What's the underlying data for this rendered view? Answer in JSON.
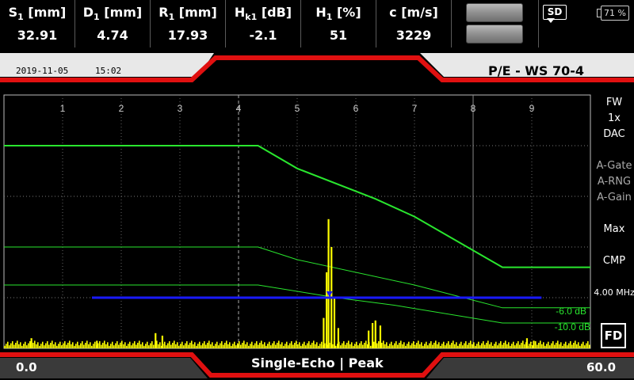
{
  "measurements": [
    {
      "label_main": "S",
      "label_sub": "1",
      "label_unit": " [mm]",
      "value": "32.91"
    },
    {
      "label_main": "D",
      "label_sub": "1",
      "label_unit": " [mm]",
      "value": "4.74"
    },
    {
      "label_main": "R",
      "label_sub": "1",
      "label_unit": " [mm]",
      "value": "17.93"
    },
    {
      "label_main": "H",
      "label_sub": "k1",
      "label_unit": " [dB]",
      "value": "-2.1"
    },
    {
      "label_main": "H",
      "label_sub": "1",
      "label_unit": " [%]",
      "value": "51"
    },
    {
      "label_main": "c [m/s]",
      "label_sub": "",
      "label_unit": "",
      "value": "3229"
    }
  ],
  "status": {
    "sd_label": "SD",
    "battery": "71 %"
  },
  "header": {
    "date": "2019-11-05",
    "time": "15:02",
    "probe": "P/E - WS 70-4"
  },
  "side_panel": {
    "fw": "FW",
    "zoom": "1x",
    "dac": "DAC",
    "a_gate": "A-Gate",
    "a_rng": "A-RNG",
    "a_gain": "A-Gain",
    "max": "Max",
    "cmp": "CMP",
    "freq": "4.00 MHz",
    "fd": "FD"
  },
  "footer": {
    "range_start": "0.0",
    "mode": "Single-Echo | Peak",
    "range_end": "60.0"
  },
  "colors": {
    "accent_red": "#e01010",
    "curve": "#29e62e",
    "gate": "#1a1aff",
    "signal": "#ffff00",
    "frame": "#bdbdbd"
  },
  "chart_data": {
    "type": "line",
    "x_ticks": [
      "1",
      "2",
      "3",
      "4",
      "5",
      "6",
      "7",
      "8",
      "9"
    ],
    "xlim": [
      0,
      60
    ],
    "ylim": [
      0,
      100
    ],
    "dac_curves": [
      {
        "name": "",
        "width": 2,
        "points": [
          [
            0,
            80
          ],
          [
            26,
            80
          ],
          [
            30,
            71
          ],
          [
            38,
            59
          ],
          [
            42,
            52
          ],
          [
            51,
            32
          ],
          [
            60,
            32
          ]
        ]
      },
      {
        "name": "",
        "width": 1,
        "points": [
          [
            0,
            40
          ],
          [
            26,
            40
          ],
          [
            30,
            35
          ],
          [
            42,
            25
          ],
          [
            51,
            16
          ],
          [
            60,
            16
          ]
        ]
      },
      {
        "name": "",
        "width": 1,
        "points": [
          [
            0,
            25
          ],
          [
            26,
            25
          ],
          [
            34,
            20
          ],
          [
            40,
            17
          ],
          [
            51,
            10
          ],
          [
            60,
            10
          ]
        ]
      }
    ],
    "curve_labels": [
      "-6.0 dB",
      "-10.0 dB"
    ],
    "gate": {
      "start": 9,
      "end": 55,
      "level": 20
    },
    "signal_peaks": [
      {
        "x": 33.2,
        "h": 51
      },
      {
        "x": 33.5,
        "h": 40
      },
      {
        "x": 33.0,
        "h": 30
      },
      {
        "x": 33.8,
        "h": 20
      },
      {
        "x": 32.7,
        "h": 12
      },
      {
        "x": 34.2,
        "h": 8
      },
      {
        "x": 37.7,
        "h": 10
      },
      {
        "x": 38.0,
        "h": 11
      },
      {
        "x": 38.5,
        "h": 9
      },
      {
        "x": 37.3,
        "h": 7
      },
      {
        "x": 15.5,
        "h": 6
      },
      {
        "x": 16.2,
        "h": 5
      },
      {
        "x": 2.8,
        "h": 4
      },
      {
        "x": 9.5,
        "h": 3
      },
      {
        "x": 53.5,
        "h": 4
      },
      {
        "x": 54.2,
        "h": 3
      }
    ]
  }
}
